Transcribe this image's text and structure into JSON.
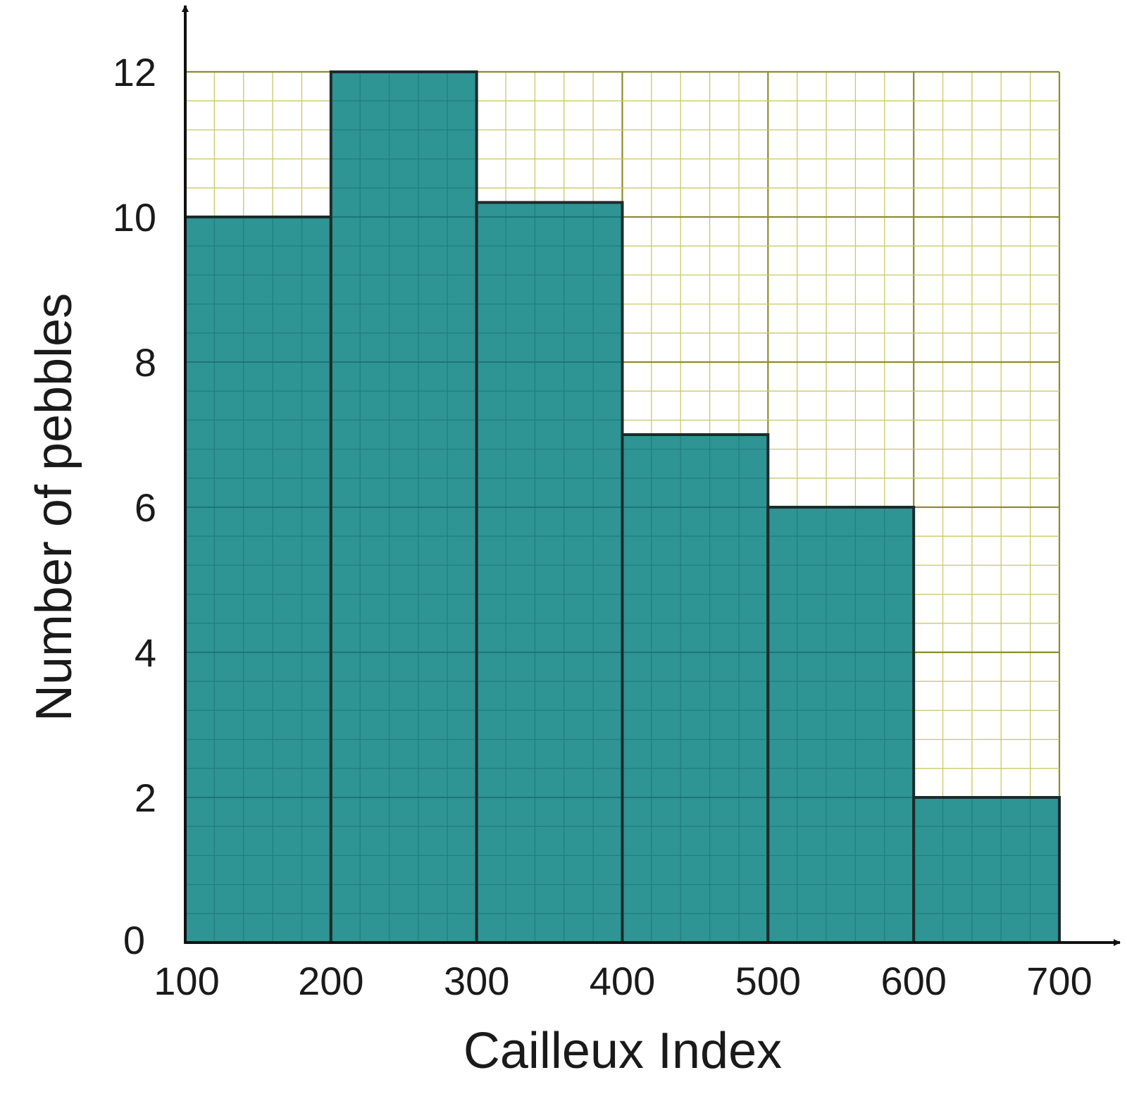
{
  "chart_data": {
    "type": "bar",
    "bins": [
      100,
      200,
      300,
      400,
      500,
      600,
      700
    ],
    "categories": [
      "100–200",
      "200–300",
      "300–400",
      "400–500",
      "500–600",
      "600–700"
    ],
    "values": [
      10,
      12,
      10.2,
      7,
      6,
      2
    ],
    "xlabel": "Cailleux Index",
    "ylabel": "Number of pebbles",
    "x_ticks": [
      "100",
      "200",
      "300",
      "400",
      "500",
      "600",
      "700"
    ],
    "y_ticks": [
      "0",
      "2",
      "4",
      "6",
      "8",
      "10",
      "12"
    ],
    "xlim": [
      100,
      700
    ],
    "ylim": [
      0,
      12
    ],
    "grid": true,
    "minor_grid_step_x": 20,
    "minor_grid_step_y": 0.4,
    "colors": {
      "bar_fill": "#2e9494",
      "bar_stroke": "#1e2a2a",
      "grid_minor": "#c9c86a",
      "grid_major": "#8e8c2a",
      "axis": "#111111"
    }
  }
}
